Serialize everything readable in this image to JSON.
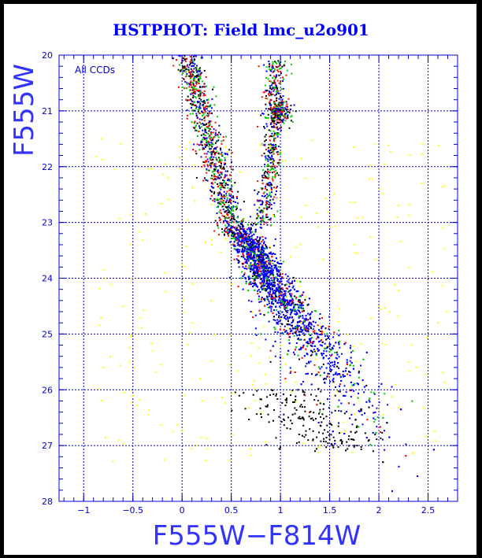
{
  "chart_data": {
    "type": "scatter",
    "title": "HSTPHOT: Field lmc_u2o901",
    "xlabel": "F555W−F814W",
    "ylabel": "F555W",
    "annotation": "All CCDs",
    "xlim": [
      -1.25,
      2.8
    ],
    "ylim": [
      28,
      20
    ],
    "y_inverted": true,
    "grid": true,
    "x_ticks": [
      -1,
      -0.5,
      0,
      0.5,
      1,
      1.5,
      2,
      2.5
    ],
    "x_tick_labels": [
      "−1",
      "−0.5",
      "0",
      "0.5",
      "1",
      "1.5",
      "2",
      "2.5"
    ],
    "y_ticks": [
      20,
      21,
      22,
      23,
      24,
      25,
      26,
      27,
      28
    ],
    "y_tick_labels": [
      "20",
      "21",
      "22",
      "23",
      "24",
      "25",
      "26",
      "27",
      "28"
    ],
    "colors": {
      "background": "#000000",
      "plot_area": "#ffffff",
      "axis": "#0000cc",
      "grid": "#0000cc",
      "title": "#0000ff",
      "label": "#3333ff"
    },
    "series": [
      {
        "color": "#0000ff",
        "values": [
          [
            0.05,
            20.5
          ],
          [
            0.12,
            21.6
          ],
          [
            0.3,
            22.3
          ],
          [
            0.52,
            23.4
          ],
          [
            0.62,
            24.2
          ],
          [
            0.7,
            24.6
          ],
          [
            0.75,
            24.9
          ],
          [
            0.85,
            25.1
          ],
          [
            0.95,
            25.4
          ],
          [
            1.0,
            21.0
          ],
          [
            0.95,
            22.5
          ],
          [
            0.95,
            23.3
          ],
          [
            1.1,
            25.7
          ],
          [
            0.58,
            23.8
          ],
          [
            0.68,
            24.4
          ]
        ]
      },
      {
        "color": "#ff0000",
        "values": [
          [
            0.04,
            20.8
          ],
          [
            0.2,
            22.0
          ],
          [
            0.42,
            23.0
          ],
          [
            0.58,
            23.7
          ],
          [
            0.72,
            24.7
          ],
          [
            0.9,
            25.3
          ],
          [
            1.05,
            25.8
          ],
          [
            1.25,
            26.1
          ],
          [
            0.9,
            22.0
          ],
          [
            0.98,
            21.4
          ]
        ]
      },
      {
        "color": "#00cc00",
        "values": [
          [
            0.1,
            21.2
          ],
          [
            0.35,
            22.6
          ],
          [
            0.6,
            24.0
          ],
          [
            0.8,
            25.0
          ],
          [
            1.0,
            25.6
          ],
          [
            1.15,
            26.2
          ],
          [
            1.4,
            26.4
          ],
          [
            1.0,
            20.5
          ],
          [
            0.97,
            22.8
          ]
        ]
      },
      {
        "color": "#000000",
        "values": [
          [
            0.15,
            22.2
          ],
          [
            0.45,
            23.1
          ],
          [
            0.9,
            25.5
          ],
          [
            1.2,
            26.3
          ],
          [
            1.5,
            26.6
          ],
          [
            1.75,
            27.0
          ],
          [
            1.9,
            26.9
          ],
          [
            1.1,
            26.7
          ]
        ]
      },
      {
        "color": "#ffff00",
        "values": [
          [
            -0.6,
            24.5
          ],
          [
            -0.3,
            25.3
          ],
          [
            0.1,
            24.8
          ],
          [
            0.3,
            23.4
          ],
          [
            1.5,
            23.5
          ],
          [
            2.0,
            24.5
          ],
          [
            2.3,
            25.5
          ],
          [
            1.8,
            26.2
          ],
          [
            2.6,
            24.8
          ],
          [
            -0.8,
            25.6
          ],
          [
            0.2,
            26.2
          ],
          [
            1.4,
            27.0
          ]
        ]
      }
    ]
  }
}
